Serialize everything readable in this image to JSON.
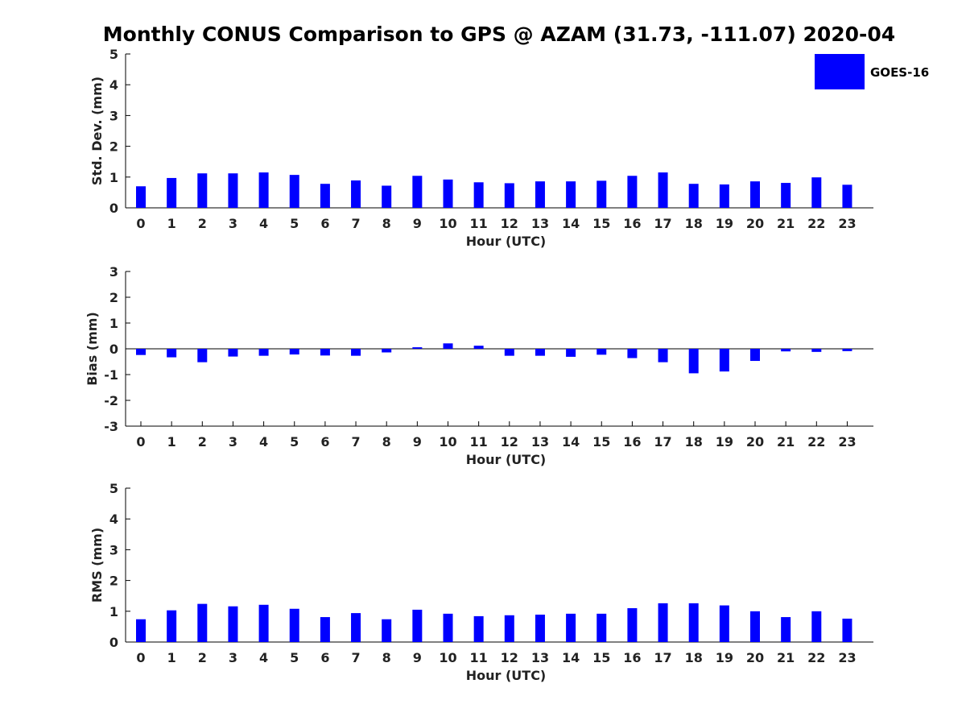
{
  "chart_data": {
    "type": "bar",
    "title": "Monthly CONUS Comparison to GPS @ AZAM (31.73, -111.07) 2020-04",
    "legend": {
      "placement": "top-right",
      "entries": [
        "GOES-16"
      ]
    },
    "series_color": "#0000ff",
    "grid": false,
    "panels": [
      {
        "id": "std",
        "ylabel": "Std. Dev. (mm)",
        "xlabel": "Hour (UTC)",
        "ylim": [
          0,
          5
        ],
        "yticks": [
          0,
          1,
          2,
          3,
          4,
          5
        ],
        "categories": [
          "0",
          "1",
          "2",
          "3",
          "4",
          "5",
          "6",
          "7",
          "8",
          "9",
          "10",
          "11",
          "12",
          "13",
          "14",
          "15",
          "16",
          "17",
          "18",
          "19",
          "20",
          "21",
          "22",
          "23"
        ],
        "series": [
          {
            "name": "GOES-16",
            "values": [
              0.7,
              0.97,
              1.12,
              1.12,
              1.15,
              1.07,
              0.78,
              0.89,
              0.72,
              1.04,
              0.92,
              0.83,
              0.8,
              0.86,
              0.86,
              0.88,
              1.04,
              1.15,
              0.78,
              0.76,
              0.86,
              0.81,
              0.99,
              0.75
            ]
          }
        ]
      },
      {
        "id": "bias",
        "ylabel": "Bias (mm)",
        "xlabel": "Hour (UTC)",
        "ylim": [
          -3,
          3
        ],
        "yticks": [
          -3,
          -2,
          -1,
          0,
          1,
          2,
          3
        ],
        "categories": [
          "0",
          "1",
          "2",
          "3",
          "4",
          "5",
          "6",
          "7",
          "8",
          "9",
          "10",
          "11",
          "12",
          "13",
          "14",
          "15",
          "16",
          "17",
          "18",
          "19",
          "20",
          "21",
          "22",
          "23"
        ],
        "series": [
          {
            "name": "GOES-16",
            "values": [
              -0.24,
              -0.33,
              -0.52,
              -0.3,
              -0.27,
              -0.22,
              -0.26,
              -0.27,
              -0.14,
              0.06,
              0.21,
              0.12,
              -0.27,
              -0.27,
              -0.31,
              -0.23,
              -0.36,
              -0.52,
              -0.95,
              -0.88,
              -0.47,
              -0.1,
              -0.12,
              -0.09
            ]
          }
        ]
      },
      {
        "id": "rms",
        "ylabel": "RMS (mm)",
        "xlabel": "Hour (UTC)",
        "ylim": [
          0,
          5
        ],
        "yticks": [
          0,
          1,
          2,
          3,
          4,
          5
        ],
        "categories": [
          "0",
          "1",
          "2",
          "3",
          "4",
          "5",
          "6",
          "7",
          "8",
          "9",
          "10",
          "11",
          "12",
          "13",
          "14",
          "15",
          "16",
          "17",
          "18",
          "19",
          "20",
          "21",
          "22",
          "23"
        ],
        "series": [
          {
            "name": "GOES-16",
            "values": [
              0.74,
              1.03,
              1.24,
              1.16,
              1.21,
              1.08,
              0.81,
              0.94,
              0.74,
              1.05,
              0.92,
              0.84,
              0.87,
              0.89,
              0.92,
              0.92,
              1.1,
              1.26,
              1.26,
              1.19,
              1.0,
              0.81,
              1.0,
              0.76
            ]
          }
        ]
      }
    ]
  }
}
